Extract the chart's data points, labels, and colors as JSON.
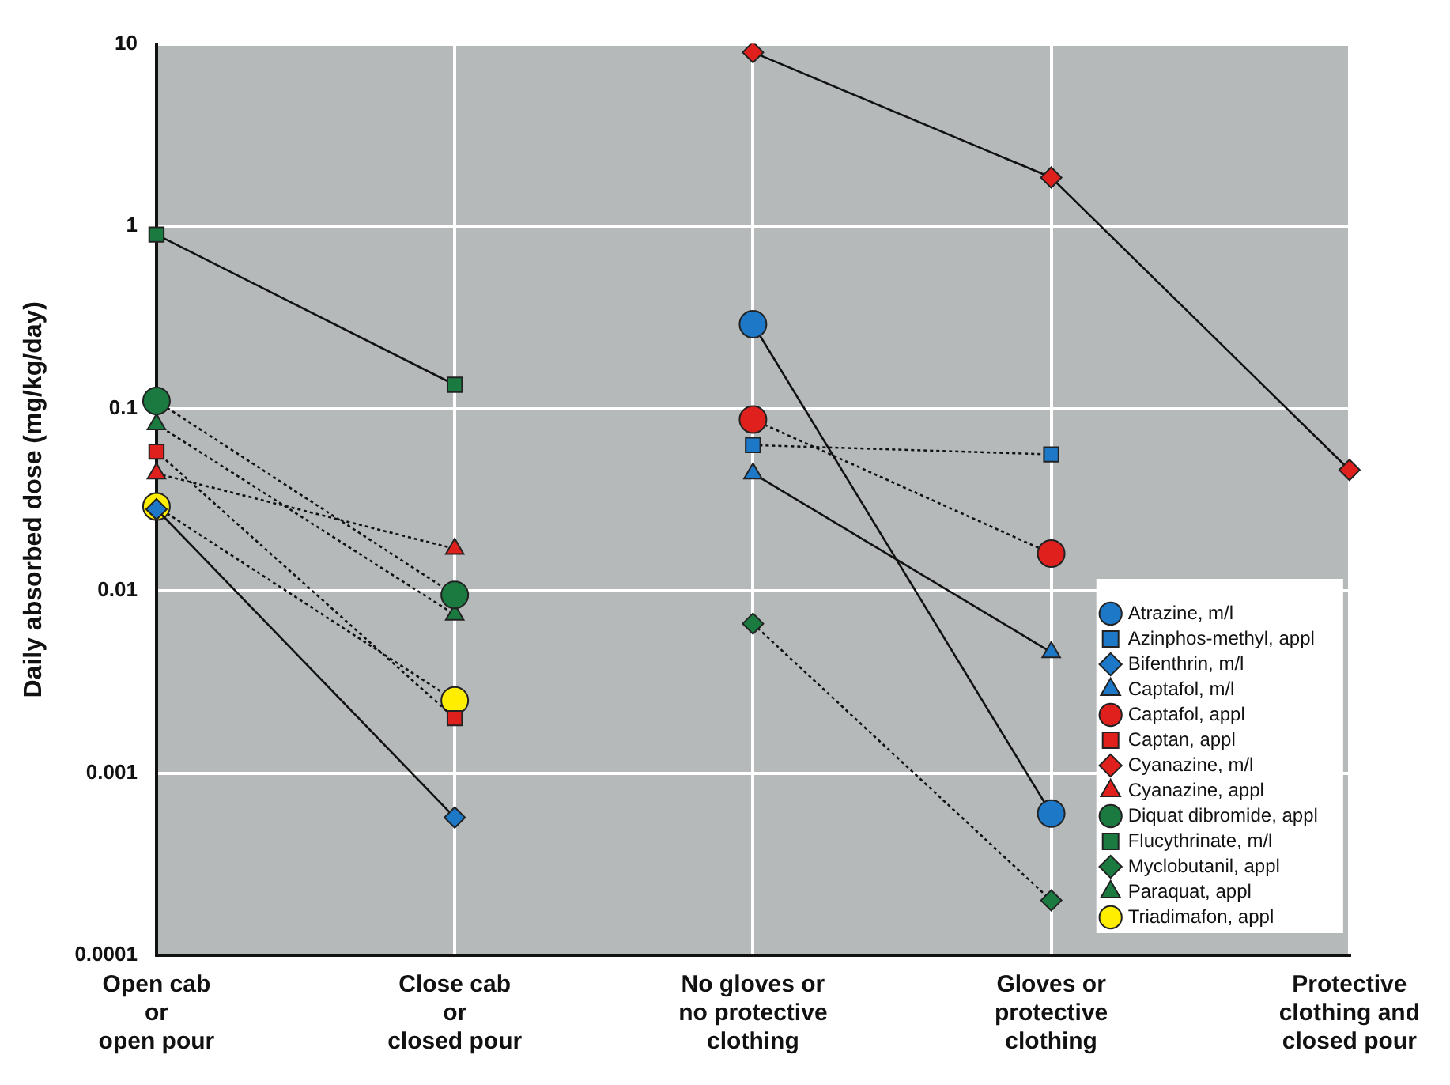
{
  "chart_data": {
    "type": "line",
    "ylabel": "Daily absorbed dose (mg/kg/day)",
    "categories": [
      "Open cab\nor\nopen pour",
      "Close cab\nor\nclosed pour",
      "No gloves or\nno protective\nclothing",
      "Gloves or\nprotective\nclothing",
      "Protective\nclothing and\nclosed pour"
    ],
    "log": "y",
    "ylim": [
      0.0001,
      10
    ],
    "yticks": [
      0.0001,
      0.001,
      0.01,
      0.1,
      1,
      10
    ],
    "grid": true,
    "legend": "bottom right",
    "series": [
      {
        "name": "Atrazine, m/l",
        "color": "#1e78c8",
        "marker": "circle",
        "line_style": "solid",
        "values": [
          null,
          null,
          0.29,
          0.0006,
          null
        ]
      },
      {
        "name": "Azinphos-methyl, appl",
        "color": "#1e78c8",
        "marker": "square",
        "line_style": "dotted",
        "values": [
          null,
          null,
          0.063,
          0.056,
          null
        ]
      },
      {
        "name": "Bifenthrin, m/l",
        "color": "#1e78c8",
        "marker": "diamond",
        "line_style": "solid",
        "values": [
          0.028,
          0.00057,
          null,
          null,
          null
        ]
      },
      {
        "name": "Captafol, m/l",
        "color": "#1e78c8",
        "marker": "triangle",
        "line_style": "solid",
        "values": [
          null,
          null,
          0.044,
          0.0046,
          null
        ]
      },
      {
        "name": "Captafol, appl",
        "color": "#e0201c",
        "marker": "circle",
        "line_style": "dotted",
        "values": [
          null,
          null,
          0.087,
          0.016,
          null
        ]
      },
      {
        "name": "Captan, appl",
        "color": "#e0201c",
        "marker": "square",
        "line_style": "dotted",
        "values": [
          0.058,
          0.002,
          null,
          null,
          null
        ]
      },
      {
        "name": "Cyanazine, m/l",
        "color": "#e0201c",
        "marker": "diamond",
        "line_style": "solid",
        "values": [
          null,
          null,
          9,
          1.85,
          0.046
        ]
      },
      {
        "name": "Cyanazine, appl",
        "color": "#e0201c",
        "marker": "triangle",
        "line_style": "dotted",
        "values": [
          0.044,
          0.017,
          null,
          null,
          null
        ]
      },
      {
        "name": "Diquat dibromide, appl",
        "color": "#1a7a40",
        "marker": "circle",
        "line_style": "dotted",
        "values": [
          0.11,
          0.0095,
          null,
          null,
          null
        ]
      },
      {
        "name": "Flucythrinate, m/l",
        "color": "#1a7a40",
        "marker": "square",
        "line_style": "solid",
        "values": [
          0.9,
          0.135,
          null,
          null,
          null
        ]
      },
      {
        "name": "Myclobutanil, appl",
        "color": "#1a7a40",
        "marker": "diamond",
        "line_style": "dotted",
        "values": [
          null,
          null,
          0.0066,
          0.0002,
          null
        ]
      },
      {
        "name": "Paraquat, appl",
        "color": "#1a7a40",
        "marker": "triangle",
        "line_style": "dotted",
        "values": [
          0.082,
          0.0074,
          null,
          null,
          null
        ]
      },
      {
        "name": "Triadimafon, appl",
        "color": "#ffee00",
        "marker": "circle",
        "line_style": "dotted",
        "values": [
          0.029,
          0.0025,
          null,
          null,
          null
        ]
      }
    ]
  }
}
